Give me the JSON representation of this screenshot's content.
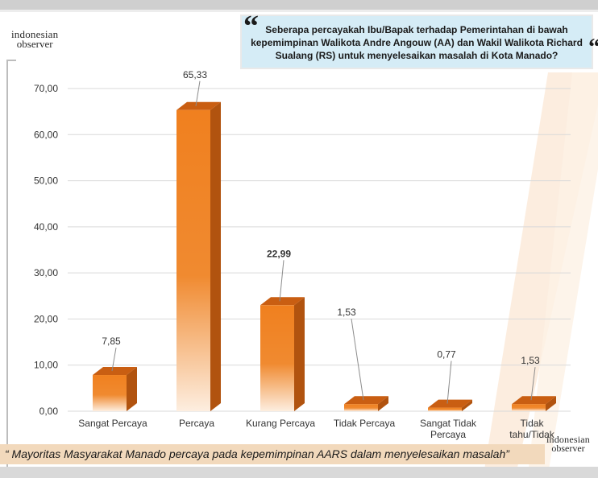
{
  "header": {
    "logo_line1": "indonesian",
    "logo_line2": "observer",
    "question": "Seberapa percayakah Ibu/Bapak terhadap Pemerintahan di bawah kepemimpinan Walikota Andre Angouw (AA) dan Wakil Walikota Richard Sualang (RS) untuk menyelesaikan masalah di Kota Manado?",
    "quote_open": "“",
    "quote_close": "“"
  },
  "footer": {
    "caption": "“ Mayoritas Masyarakat Manado percaya pada kepemimpinan AARS dalam menyelesaikan masalah”",
    "logo_line1": "indonesian",
    "logo_line2": "observer"
  },
  "colors": {
    "bar_front_top": "#f0801f",
    "bar_front_bottom": "#fdeee0",
    "bar_top": "#c95e12",
    "bar_side": "#b1530f",
    "grid": "#d9d9d9"
  },
  "chart_data": {
    "type": "bar",
    "categories": [
      "Sangat Percaya",
      "Percaya",
      "Kurang Percaya",
      "Tidak Percaya",
      "Sangat Tidak Percaya",
      "Tidak tahu/Tidak"
    ],
    "category_lines": [
      [
        "Sangat Percaya"
      ],
      [
        "Percaya"
      ],
      [
        "Kurang Percaya"
      ],
      [
        "Tidak Percaya"
      ],
      [
        "Sangat Tidak",
        "Percaya"
      ],
      [
        "Tidak",
        "tahu/Tidak"
      ]
    ],
    "values": [
      7.85,
      65.33,
      22.99,
      1.53,
      0.77,
      1.53
    ],
    "value_labels": [
      "7,85",
      "65,33",
      "22,99",
      "1,53",
      "0,77",
      "1,53"
    ],
    "ylim": [
      0,
      70
    ],
    "yticks": [
      0,
      10,
      20,
      30,
      40,
      50,
      60,
      70
    ],
    "ytick_labels": [
      "0,00",
      "10,00",
      "20,00",
      "30,00",
      "40,00",
      "50,00",
      "60,00",
      "70,00"
    ],
    "grid": true,
    "legend": "none",
    "title": "",
    "xlabel": "",
    "ylabel": ""
  }
}
